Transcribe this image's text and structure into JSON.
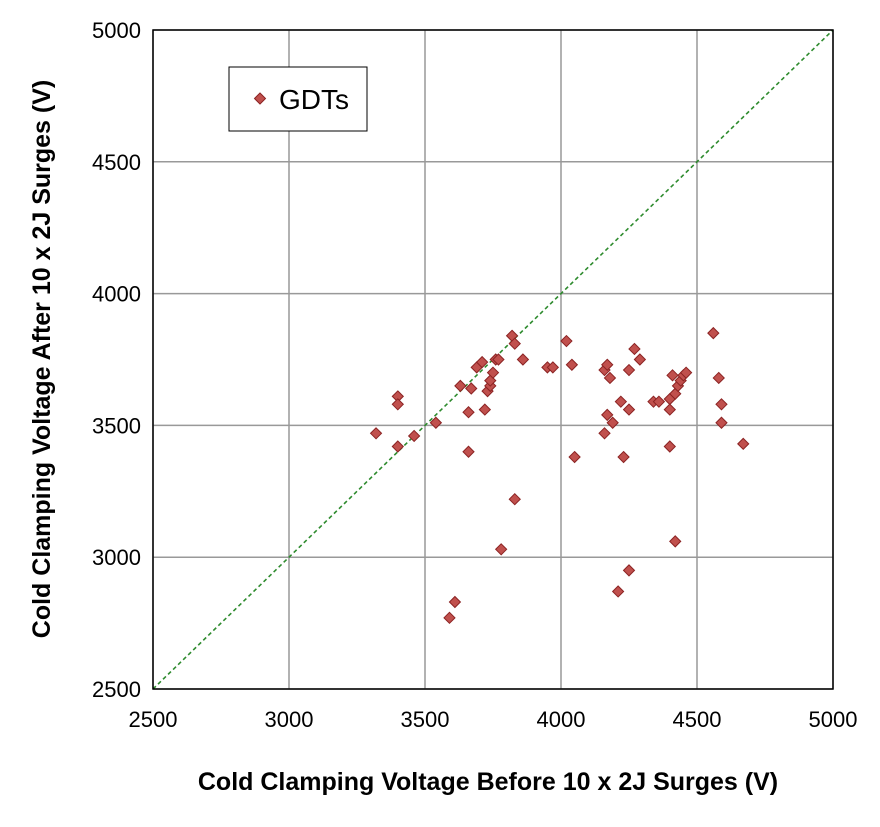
{
  "chart_data": {
    "type": "scatter",
    "title": "",
    "xlabel": "Cold Clamping Voltage Before 10 x 2J Surges (V)",
    "ylabel": "Cold Clamping Voltage After 10 x 2J Surges (V)",
    "xlim": [
      2500,
      5000
    ],
    "ylim": [
      2500,
      5000
    ],
    "xticks": [
      2500,
      3000,
      3500,
      4000,
      4500,
      5000
    ],
    "yticks": [
      2500,
      3000,
      3500,
      4000,
      4500,
      5000
    ],
    "xtick_labels": [
      "2500",
      "3000",
      "3500",
      "4000",
      "4500",
      "5000"
    ],
    "ytick_labels": [
      "2500",
      "3000",
      "3500",
      "4000",
      "4500",
      "5000"
    ],
    "grid": true,
    "legend_position": "top-left",
    "reference_line": {
      "name": "y = x",
      "from": [
        2500,
        2500
      ],
      "to": [
        5000,
        5000
      ],
      "color": "#2e8b2e",
      "style": "dashed"
    },
    "series": [
      {
        "name": "GDTs",
        "marker": "diamond",
        "color": "#c0504d",
        "edge_color": "#8b2323",
        "points": [
          [
            3320,
            3470
          ],
          [
            3400,
            3610
          ],
          [
            3400,
            3580
          ],
          [
            3400,
            3420
          ],
          [
            3460,
            3460
          ],
          [
            3540,
            3510
          ],
          [
            3630,
            3650
          ],
          [
            3660,
            3550
          ],
          [
            3660,
            3400
          ],
          [
            3670,
            3640
          ],
          [
            3690,
            3720
          ],
          [
            3710,
            3740
          ],
          [
            3720,
            3560
          ],
          [
            3730,
            3630
          ],
          [
            3740,
            3650
          ],
          [
            3740,
            3670
          ],
          [
            3750,
            3700
          ],
          [
            3760,
            3750
          ],
          [
            3770,
            3750
          ],
          [
            3780,
            3030
          ],
          [
            3820,
            3840
          ],
          [
            3830,
            3810
          ],
          [
            3830,
            3220
          ],
          [
            3860,
            3750
          ],
          [
            3950,
            3720
          ],
          [
            3970,
            3720
          ],
          [
            4020,
            3820
          ],
          [
            4040,
            3730
          ],
          [
            4050,
            3380
          ],
          [
            4160,
            3710
          ],
          [
            4160,
            3470
          ],
          [
            4170,
            3730
          ],
          [
            4170,
            3540
          ],
          [
            4180,
            3680
          ],
          [
            4190,
            3510
          ],
          [
            4210,
            2870
          ],
          [
            4220,
            3590
          ],
          [
            4230,
            3380
          ],
          [
            4250,
            3710
          ],
          [
            4250,
            3560
          ],
          [
            4250,
            2950
          ],
          [
            4270,
            3790
          ],
          [
            4290,
            3750
          ],
          [
            4340,
            3590
          ],
          [
            4360,
            3590
          ],
          [
            4400,
            3600
          ],
          [
            4400,
            3560
          ],
          [
            4400,
            3420
          ],
          [
            4410,
            3690
          ],
          [
            4420,
            3620
          ],
          [
            4420,
            3060
          ],
          [
            4430,
            3650
          ],
          [
            4440,
            3670
          ],
          [
            4450,
            3690
          ],
          [
            4460,
            3700
          ],
          [
            4560,
            3850
          ],
          [
            4580,
            3680
          ],
          [
            4590,
            3580
          ],
          [
            4590,
            3510
          ],
          [
            4670,
            3430
          ],
          [
            3590,
            2770
          ],
          [
            3610,
            2830
          ]
        ]
      }
    ]
  }
}
